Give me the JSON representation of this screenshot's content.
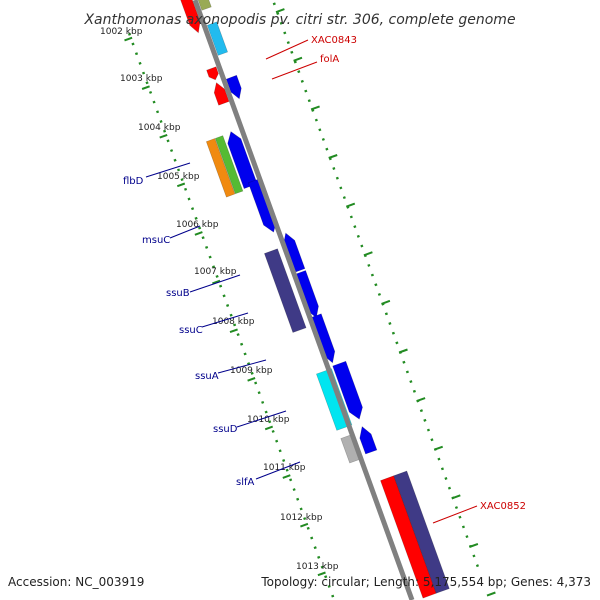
{
  "header": {
    "title": "Xanthomonas axonopodis pv. citri str. 306, complete genome"
  },
  "footer": {
    "accession": "Accession: NC_003919",
    "summary": "Topology: circular; Length: 5,175,554 bp; Genes: 4,373"
  },
  "ruler": {
    "labels": [
      "1002 kbp",
      "1003 kbp",
      "1004 kbp",
      "1005 kbp",
      "1006 kbp",
      "1007 kbp",
      "1008 kbp",
      "1009 kbp",
      "1010 kbp",
      "1011 kbp",
      "1012 kbp",
      "1013 kbp"
    ]
  },
  "gene_labels": {
    "right": [
      "XAC0843",
      "folA",
      "XAC0852"
    ],
    "left": [
      "flbD",
      "msuC",
      "ssuB",
      "ssuC",
      "ssuA",
      "ssuD",
      "slfA"
    ]
  },
  "colors": {
    "backbone": "#808080",
    "ticks": "#228B22",
    "right_label": "#cc0000",
    "left_label": "#00008b",
    "red": "#ff0000",
    "blue": "#0000ee",
    "navy": "#3f3a86",
    "cyan": "#00e5f0",
    "skyblue": "#22bbee",
    "orange": "#f08a10",
    "green": "#55bb33",
    "grey": "#b0b0b0",
    "olive": "#99aa55"
  }
}
